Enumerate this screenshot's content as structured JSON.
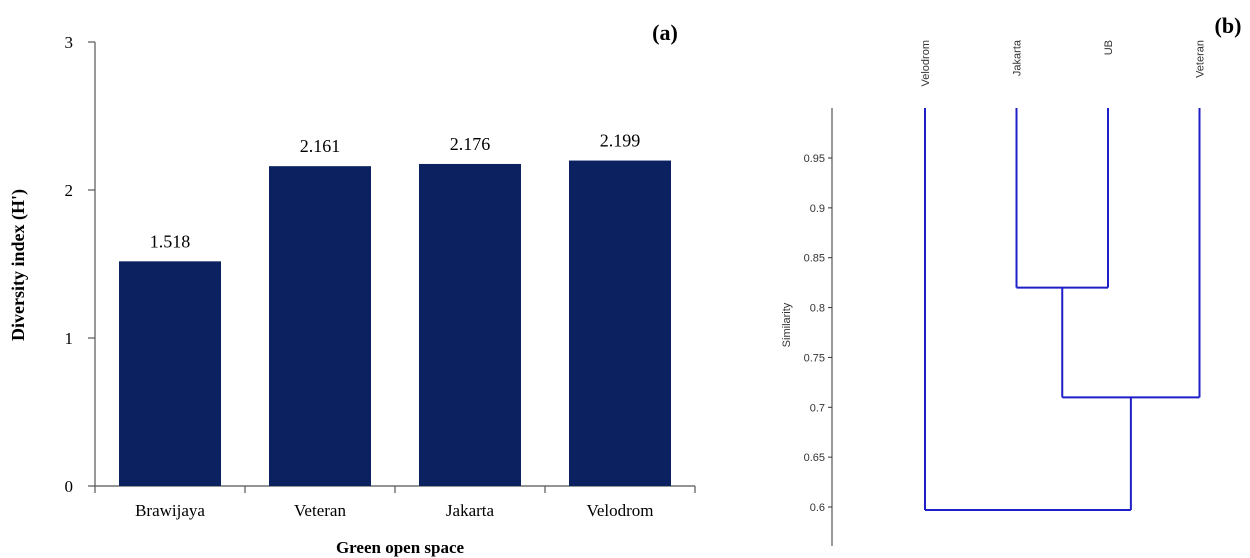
{
  "chart_data": [
    {
      "type": "bar",
      "panel_label": "(a)",
      "categories": [
        "Brawijaya",
        "Veteran",
        "Jakarta",
        "Velodrom"
      ],
      "values": [
        1.518,
        2.161,
        2.176,
        2.199
      ],
      "value_labels": [
        "1.518",
        "2.161",
        "2.176",
        "2.199"
      ],
      "xlabel": "Green open space",
      "ylabel": "Diversity index (H')",
      "ylim": [
        0,
        3
      ],
      "yticks": [
        0,
        1,
        2,
        3
      ],
      "bar_color": "#0c2260",
      "grid": false
    },
    {
      "type": "dendrogram",
      "panel_label": "(b)",
      "ylabel": "Similarity",
      "ylim": [
        0.575,
        1.0
      ],
      "yticks": [
        0.6,
        0.65,
        0.7,
        0.75,
        0.8,
        0.85,
        0.9,
        0.95
      ],
      "ytick_labels": [
        "0.6",
        "0.65",
        "0.7",
        "0.75",
        "0.8",
        "0.85",
        "0.9",
        "0.95"
      ],
      "leaves": [
        "Velodrom",
        "Jakarta",
        "UB",
        "Veteran"
      ],
      "merges": [
        {
          "members": [
            "Jakarta",
            "UB"
          ],
          "similarity": 0.82
        },
        {
          "members": [
            "Jakarta",
            "UB",
            "Veteran"
          ],
          "similarity": 0.71
        },
        {
          "members": [
            "Velodrom",
            "Jakarta",
            "UB",
            "Veteran"
          ],
          "similarity": 0.597
        }
      ],
      "link_color": "#1f1fc8",
      "grid": false
    }
  ]
}
